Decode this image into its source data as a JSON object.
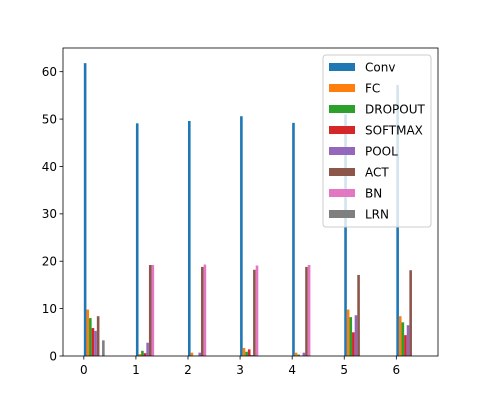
{
  "chart_data": {
    "type": "bar",
    "title": "",
    "xlabel": "",
    "ylabel": "",
    "categories": [
      "0",
      "1",
      "2",
      "3",
      "4",
      "5",
      "6"
    ],
    "ylim": [
      0,
      65
    ],
    "yticks": [
      "0",
      "10",
      "20",
      "30",
      "40",
      "50",
      "60"
    ],
    "grid": false,
    "legend_position": "top-right",
    "series": [
      {
        "name": "Conv",
        "color": "#1f77b4",
        "values": [
          61.8,
          49.1,
          49.6,
          50.6,
          49.2,
          51.0,
          57.2
        ]
      },
      {
        "name": "FC",
        "color": "#ff7f0e",
        "values": [
          9.8,
          0.4,
          0.7,
          1.7,
          0.7,
          9.8,
          8.4
        ]
      },
      {
        "name": "DROPOUT",
        "color": "#2ca02c",
        "values": [
          8.0,
          1.1,
          0.1,
          0.9,
          0.3,
          8.2,
          7.1
        ]
      },
      {
        "name": "SOFTMAX",
        "color": "#d62728",
        "values": [
          5.9,
          0.6,
          0.1,
          1.4,
          0.1,
          5.0,
          4.4
        ]
      },
      {
        "name": "POOL",
        "color": "#9467bd",
        "values": [
          5.3,
          2.8,
          0.7,
          0.2,
          0.7,
          8.6,
          6.5
        ]
      },
      {
        "name": "ACT",
        "color": "#8c564b",
        "values": [
          8.4,
          19.2,
          18.8,
          18.2,
          18.8,
          17.1,
          18.1
        ]
      },
      {
        "name": "BN",
        "color": "#e377c2",
        "values": [
          0.0,
          19.2,
          19.3,
          19.1,
          19.2,
          0.0,
          0.0
        ]
      },
      {
        "name": "LRN",
        "color": "#7f7f7f",
        "values": [
          3.3,
          0.0,
          0.0,
          0.0,
          0.0,
          0.0,
          0.0
        ]
      }
    ]
  }
}
